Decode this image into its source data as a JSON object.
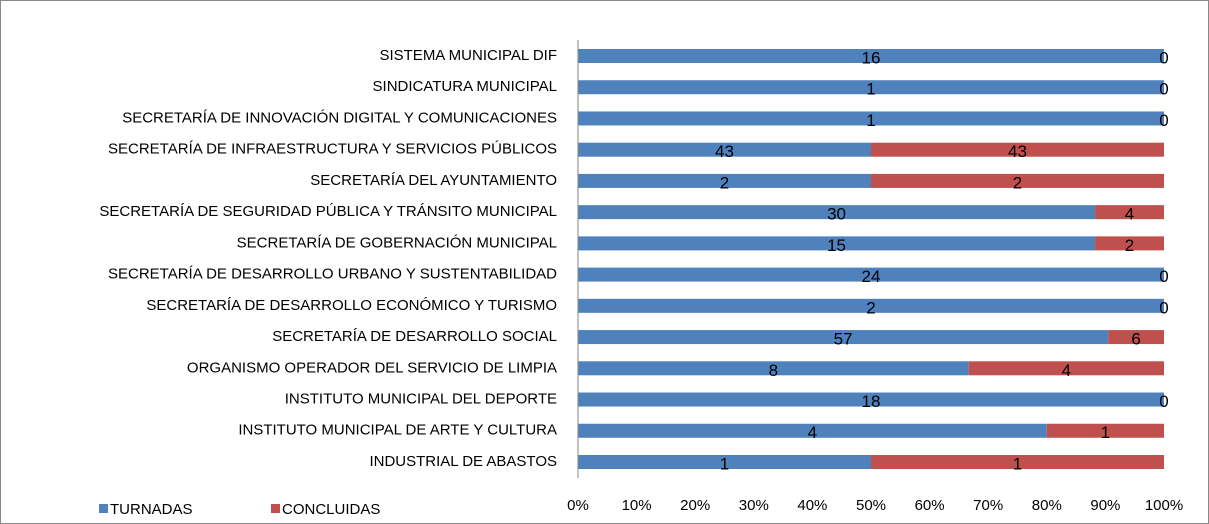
{
  "chart_data": {
    "type": "bar",
    "orientation": "horizontal",
    "stacking": "percent",
    "categories": [
      "SISTEMA MUNICIPAL DIF",
      "SINDICATURA MUNICIPAL",
      "SECRETARÍA DE INNOVACIÓN DIGITAL Y COMUNICACIONES",
      "SECRETARÍA DE INFRAESTRUCTURA Y SERVICIOS PÚBLICOS",
      "SECRETARÍA DEL AYUNTAMIENTO",
      "SECRETARÍA DE SEGURIDAD PÚBLICA Y TRÁNSITO MUNICIPAL",
      "SECRETARÍA DE GOBERNACIÓN MUNICIPAL",
      "SECRETARÍA DE DESARROLLO URBANO Y SUSTENTABILIDAD",
      "SECRETARÍA DE DESARROLLO ECONÓMICO Y TURISMO",
      "SECRETARÍA DE DESARROLLO SOCIAL",
      "ORGANISMO OPERADOR DEL SERVICIO DE LIMPIA",
      "INSTITUTO MUNICIPAL DEL DEPORTE",
      "INSTITUTO MUNICIPAL DE ARTE Y CULTURA",
      "INDUSTRIAL DE ABASTOS"
    ],
    "series": [
      {
        "name": "TURNADAS",
        "color": "#4f81bd",
        "values": [
          16,
          1,
          1,
          43,
          2,
          30,
          15,
          24,
          2,
          57,
          8,
          18,
          4,
          1
        ]
      },
      {
        "name": "CONCLUIDAS",
        "color": "#c0504d",
        "values": [
          0,
          0,
          0,
          43,
          2,
          4,
          2,
          0,
          0,
          6,
          4,
          0,
          1,
          1
        ]
      }
    ],
    "xlim": [
      0,
      100
    ],
    "xticks": [
      {
        "value": 0,
        "label": "0%"
      },
      {
        "value": 10,
        "label": "10%"
      },
      {
        "value": 20,
        "label": "20%"
      },
      {
        "value": 30,
        "label": "30%"
      },
      {
        "value": 40,
        "label": "40%"
      },
      {
        "value": 50,
        "label": "50%"
      },
      {
        "value": 60,
        "label": "60%"
      },
      {
        "value": 70,
        "label": "70%"
      },
      {
        "value": 80,
        "label": "80%"
      },
      {
        "value": 90,
        "label": "90%"
      },
      {
        "value": 100,
        "label": "100%"
      }
    ],
    "grid": false,
    "legend": "bottom-left"
  }
}
